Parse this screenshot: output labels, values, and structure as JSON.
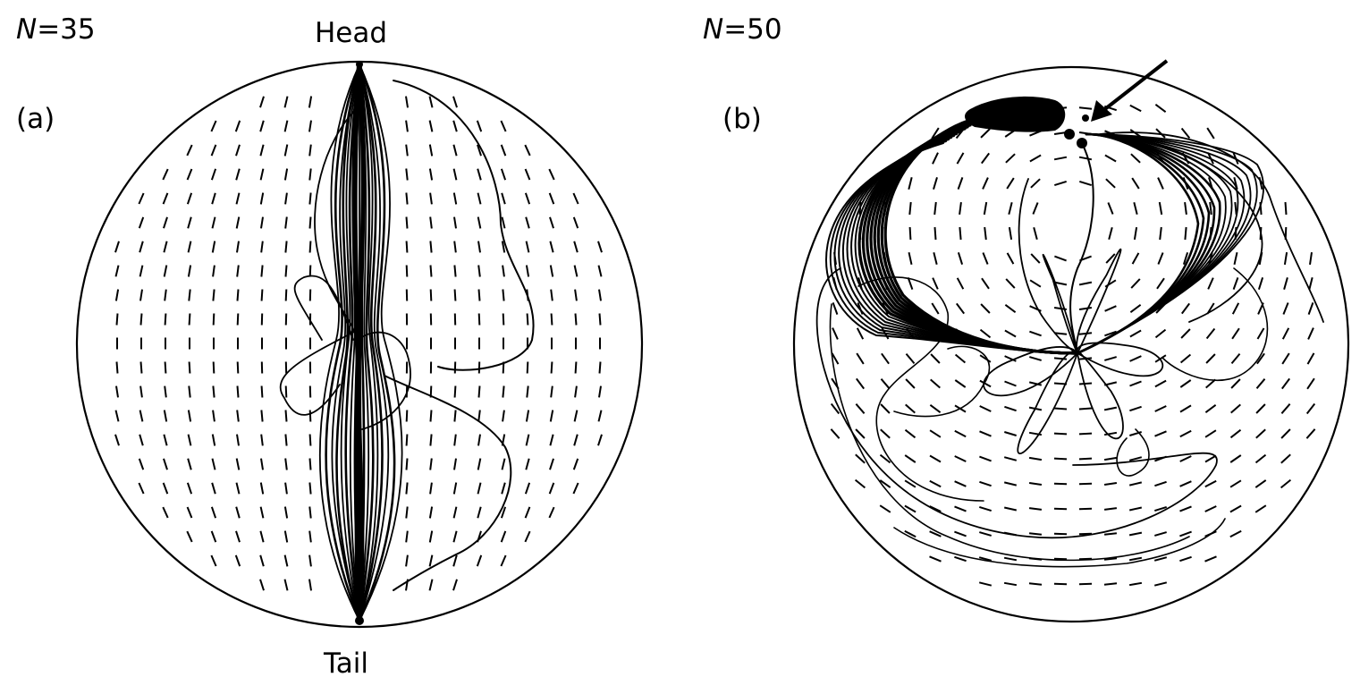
{
  "panels": [
    {
      "n_symbol": "N",
      "n_value": "=35",
      "letter": "(a)",
      "top_label": "Head",
      "bottom_label": "Tail"
    },
    {
      "n_symbol": "N",
      "n_value": "=50",
      "letter": "(b)"
    }
  ]
}
